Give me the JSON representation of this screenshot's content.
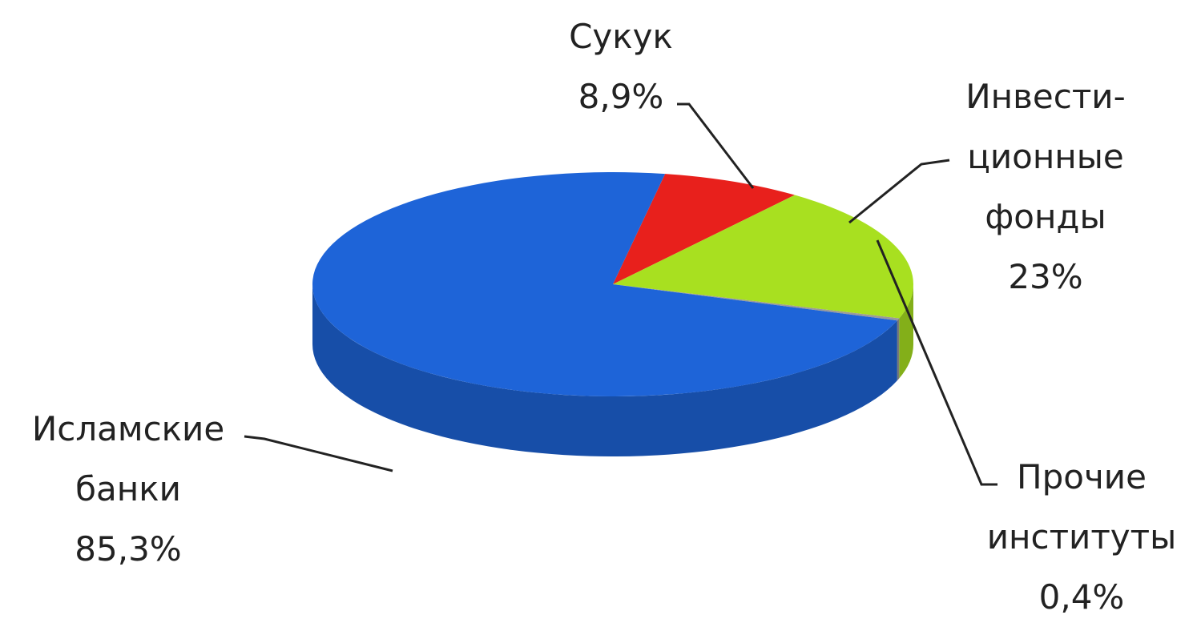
{
  "chart_data": {
    "type": "pie3d",
    "categories": [
      "Сукук",
      "Инвести-\nционные\nфонды",
      "Прочие\nинституты",
      "Исламские\nбанки"
    ],
    "values": [
      8.9,
      23,
      0.4,
      85.3
    ],
    "value_labels": [
      "8,9%",
      "23%",
      "0,4%",
      "85,3%"
    ],
    "colors": [
      "#e8201c",
      "#a8e020",
      "#9a9a9a",
      "#1e64d8"
    ]
  }
}
